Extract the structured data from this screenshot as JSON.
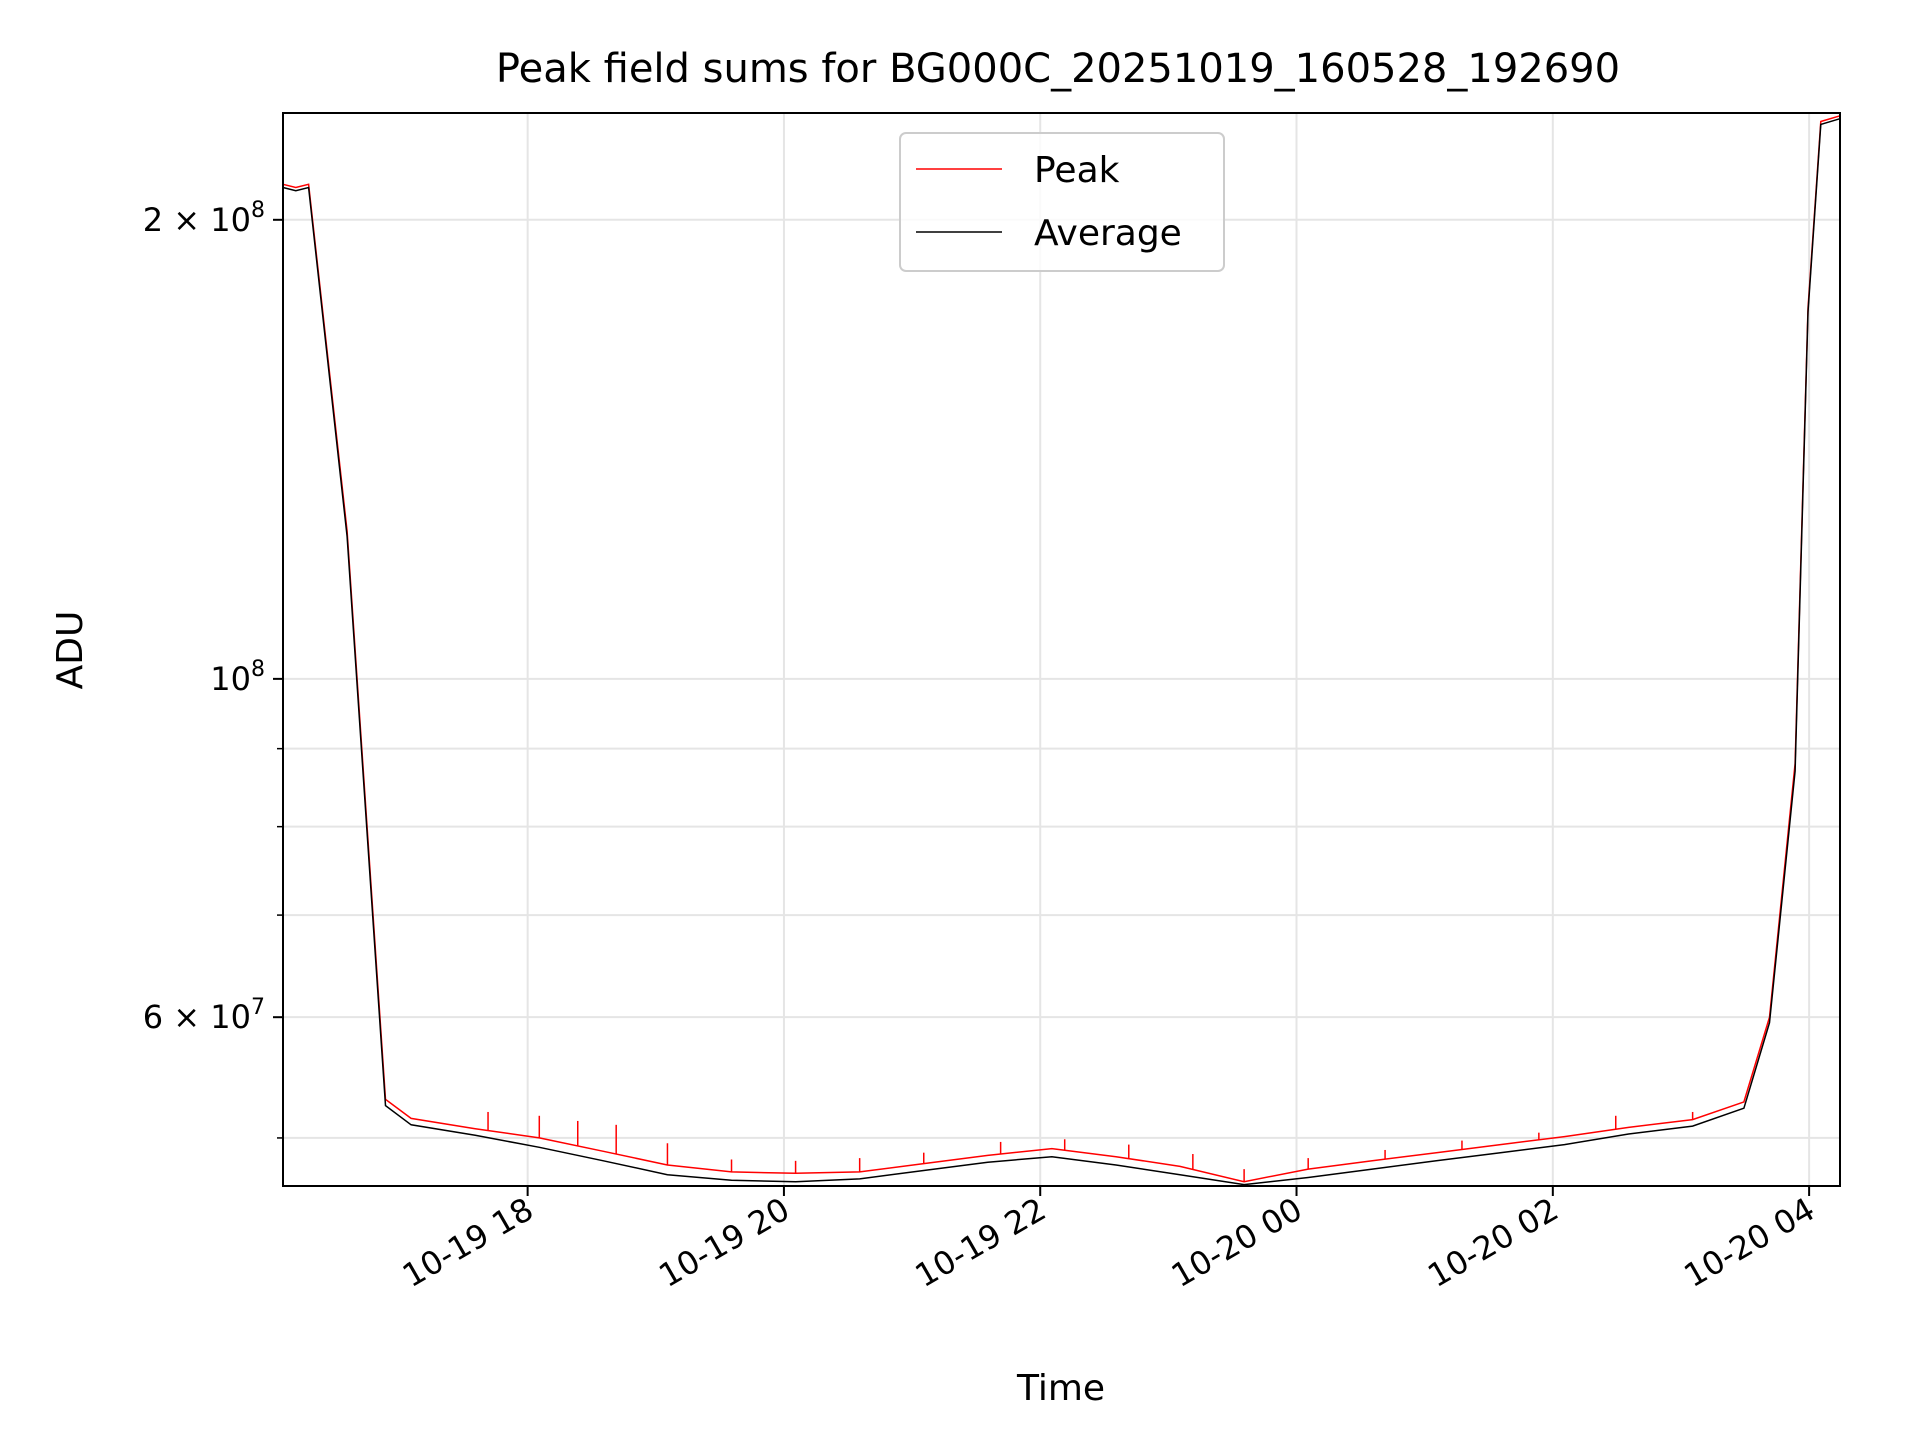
{
  "chart_data": {
    "type": "line",
    "title": "Peak field sums for BG000C_20251019_160528_192690",
    "xlabel": "Time",
    "ylabel": "ADU",
    "yscale": "log",
    "grid": true,
    "legend_location": "upper center",
    "x_unit": "hours since 10-19 16:05:28",
    "xlim": [
      0,
      12.15
    ],
    "ylim": [
      46500000,
      235000000
    ],
    "x_ticks": [
      {
        "x": 1.909,
        "label": "10-19 18"
      },
      {
        "x": 3.909,
        "label": "10-19 20"
      },
      {
        "x": 5.909,
        "label": "10-19 22"
      },
      {
        "x": 7.909,
        "label": "10-20 00"
      },
      {
        "x": 9.909,
        "label": "10-20 02"
      },
      {
        "x": 11.909,
        "label": "10-20 04"
      }
    ],
    "y_major_ticks": [
      {
        "value": 200000000,
        "mantissa": "2",
        "exponent": "8"
      },
      {
        "value": 100000000,
        "mantissa": "",
        "exponent": "8"
      },
      {
        "value": 60000000,
        "mantissa": "6",
        "exponent": "7"
      }
    ],
    "y_minor_grid": [
      50000000,
      70000000,
      80000000,
      90000000
    ],
    "series": [
      {
        "name": "Peak",
        "color": "#ff0000",
        "x": [
          0,
          0.1,
          0.2,
          0.5,
          0.8,
          1.0,
          1.5,
          2.0,
          2.5,
          3.0,
          3.5,
          4.0,
          4.5,
          5.0,
          5.5,
          6.0,
          6.5,
          7.0,
          7.5,
          8.0,
          8.5,
          9.0,
          9.5,
          10.0,
          10.5,
          11.0,
          11.4,
          11.6,
          11.8,
          11.9,
          12.0,
          12.15
        ],
        "values": [
          211000000,
          210000000,
          211000000,
          125000000,
          53000000,
          51500000,
          50700000,
          50000000,
          49000000,
          48000000,
          47500000,
          47400000,
          47500000,
          48100000,
          48700000,
          49200000,
          48600000,
          47900000,
          46800000,
          47700000,
          48300000,
          48900000,
          49500000,
          50100000,
          50800000,
          51400000,
          52800000,
          60000000,
          88000000,
          175000000,
          232000000,
          234000000
        ],
        "spikes": [
          {
            "x": 1.6,
            "value": 52000000
          },
          {
            "x": 2.0,
            "value": 51700000
          },
          {
            "x": 2.3,
            "value": 51300000
          },
          {
            "x": 2.6,
            "value": 51000000
          },
          {
            "x": 3.0,
            "value": 49600000
          },
          {
            "x": 3.5,
            "value": 48400000
          },
          {
            "x": 4.0,
            "value": 48300000
          },
          {
            "x": 4.5,
            "value": 48500000
          },
          {
            "x": 5.0,
            "value": 48900000
          },
          {
            "x": 5.6,
            "value": 49700000
          },
          {
            "x": 6.1,
            "value": 49900000
          },
          {
            "x": 6.6,
            "value": 49500000
          },
          {
            "x": 7.1,
            "value": 48800000
          },
          {
            "x": 7.5,
            "value": 47700000
          },
          {
            "x": 8.0,
            "value": 48500000
          },
          {
            "x": 8.6,
            "value": 49100000
          },
          {
            "x": 9.2,
            "value": 49800000
          },
          {
            "x": 9.8,
            "value": 50400000
          },
          {
            "x": 10.4,
            "value": 51700000
          },
          {
            "x": 11.0,
            "value": 52000000
          }
        ]
      },
      {
        "name": "Average",
        "color": "#000000",
        "x": [
          0,
          0.1,
          0.2,
          0.5,
          0.8,
          1.0,
          1.5,
          2.0,
          2.5,
          3.0,
          3.5,
          4.0,
          4.5,
          5.0,
          5.5,
          6.0,
          6.5,
          7.0,
          7.5,
          8.0,
          8.5,
          9.0,
          9.5,
          10.0,
          10.5,
          11.0,
          11.4,
          11.6,
          11.8,
          11.9,
          12.0,
          12.15
        ],
        "values": [
          210000000,
          209000000,
          210000000,
          124000000,
          52500000,
          51000000,
          50200000,
          49300000,
          48300000,
          47300000,
          46900000,
          46800000,
          47000000,
          47600000,
          48200000,
          48600000,
          48000000,
          47300000,
          46600000,
          47100000,
          47700000,
          48300000,
          48900000,
          49500000,
          50300000,
          50900000,
          52300000,
          59500000,
          87000000,
          174000000,
          231000000,
          233000000
        ]
      }
    ]
  }
}
